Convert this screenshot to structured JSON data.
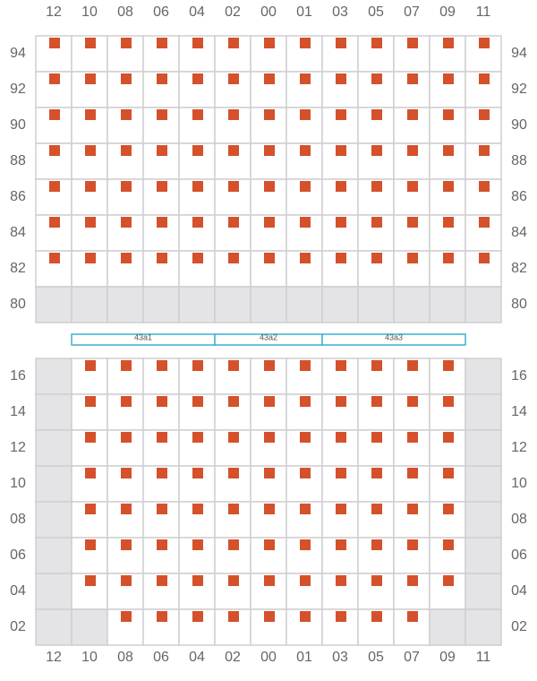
{
  "columns": [
    "12",
    "10",
    "08",
    "06",
    "04",
    "02",
    "00",
    "01",
    "03",
    "05",
    "07",
    "09",
    "11"
  ],
  "top_rows": [
    "94",
    "92",
    "90",
    "88",
    "86",
    "84",
    "82",
    "80"
  ],
  "bays": [
    "43a1",
    "43a2",
    "43a3"
  ],
  "bottom_rows": [
    "16",
    "14",
    "12",
    "10",
    "08",
    "06",
    "04",
    "02"
  ]
}
